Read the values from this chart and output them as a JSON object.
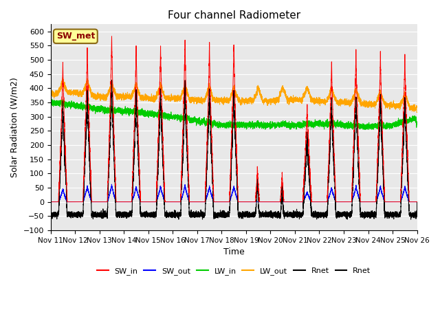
{
  "title": "Four channel Radiometer",
  "xlabel": "Time",
  "ylabel": "Solar Radiation (W/m2)",
  "ylim": [
    -100,
    625
  ],
  "yticks": [
    -100,
    -50,
    0,
    50,
    100,
    150,
    200,
    250,
    300,
    350,
    400,
    450,
    500,
    550,
    600
  ],
  "x_labels": [
    "Nov 11",
    "Nov 12",
    "Nov 13",
    "Nov 14",
    "Nov 15",
    "Nov 16",
    "Nov 17",
    "Nov 18",
    "Nov 19",
    "Nov 20",
    "Nov 21",
    "Nov 22",
    "Nov 23",
    "Nov 24",
    "Nov 25",
    "Nov 26"
  ],
  "annotation_text": "SW_met",
  "annotation_color": "#8B0000",
  "annotation_bg": "#FFFF99",
  "annotation_border": "#8B6914",
  "colors": {
    "SW_in": "#FF0000",
    "SW_out": "#0000FF",
    "LW_in": "#00CC00",
    "LW_out": "#FFA500",
    "Rnet1": "#000000",
    "Rnet2": "#000000"
  },
  "legend_labels": [
    "SW_in",
    "SW_out",
    "LW_in",
    "LW_out",
    "Rnet",
    "Rnet"
  ],
  "bg_color": "#E8E8E8",
  "n_points": 7200
}
